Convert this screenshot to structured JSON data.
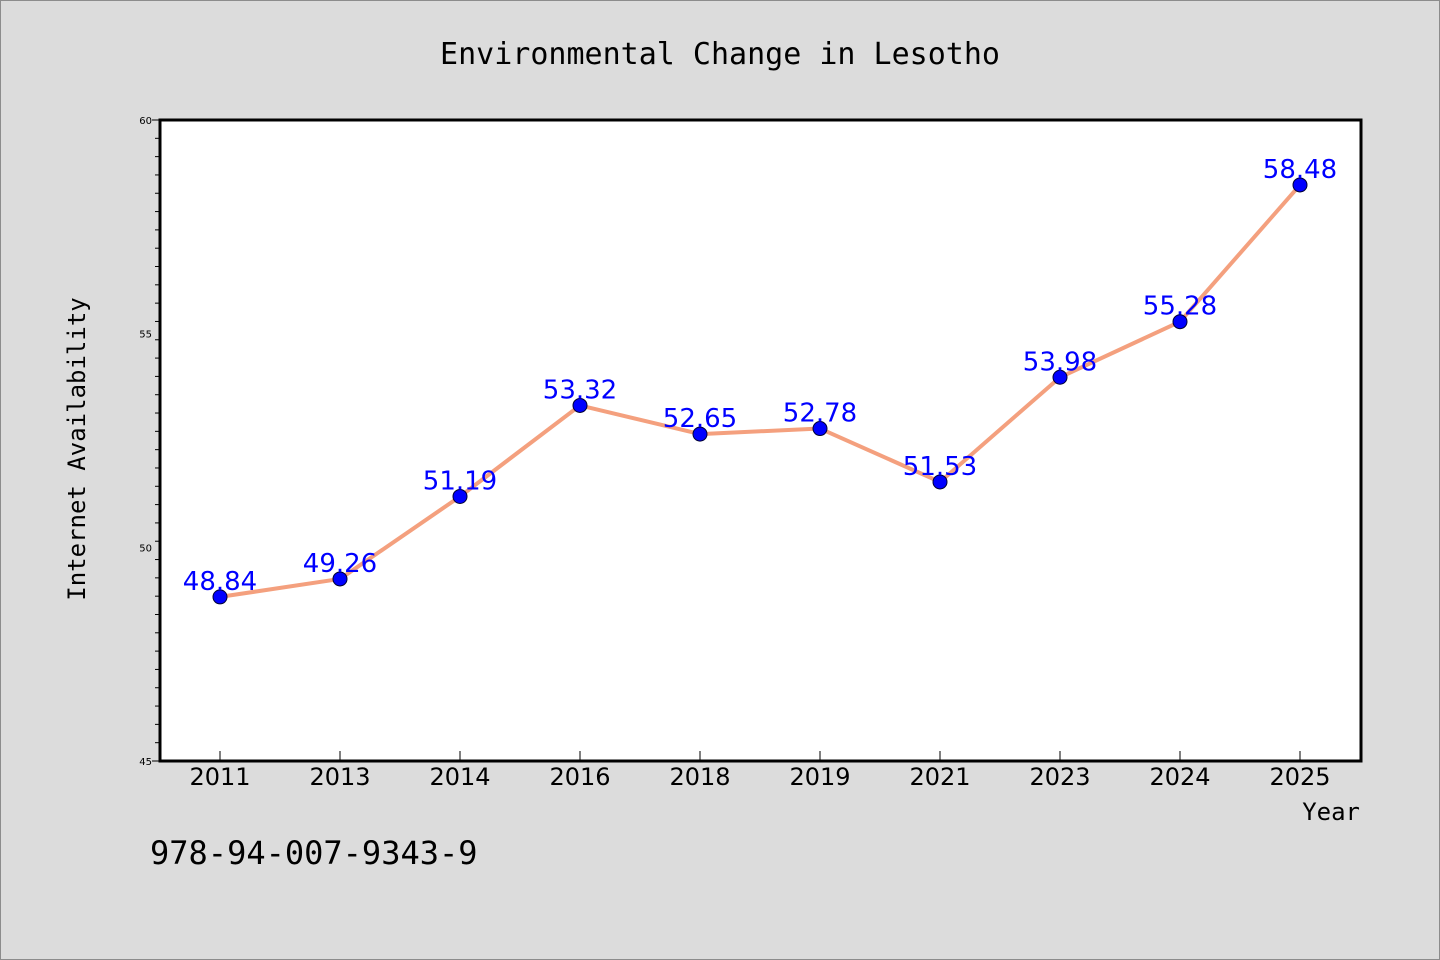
{
  "chart_data": {
    "type": "line",
    "title": "Environmental Change in Lesotho",
    "xlabel": "Year",
    "ylabel": "Internet Availability",
    "categories": [
      "2011",
      "2013",
      "2014",
      "2016",
      "2018",
      "2019",
      "2021",
      "2023",
      "2024",
      "2025"
    ],
    "series": [
      {
        "values": [
          48.84,
          49.26,
          51.19,
          53.32,
          52.65,
          52.78,
          51.53,
          53.98,
          55.28,
          58.48
        ],
        "labels": [
          "48.84",
          "49.26",
          "51.19",
          "53.32",
          "52.65",
          "52.78",
          "51.53",
          "53.98",
          "55.28",
          "58.48"
        ]
      }
    ],
    "ylim": [
      45,
      60
    ],
    "yticks": [
      "45",
      "50",
      "55",
      "60"
    ],
    "grid": false,
    "legend": "none",
    "colors": {
      "line": "#f4a07e",
      "marker": "#0000ff",
      "data_label": "#0000ff",
      "plot_background": "#ffffff",
      "figure_background": "#dcdcdc"
    }
  },
  "annotation": "978-94-007-9343-9"
}
